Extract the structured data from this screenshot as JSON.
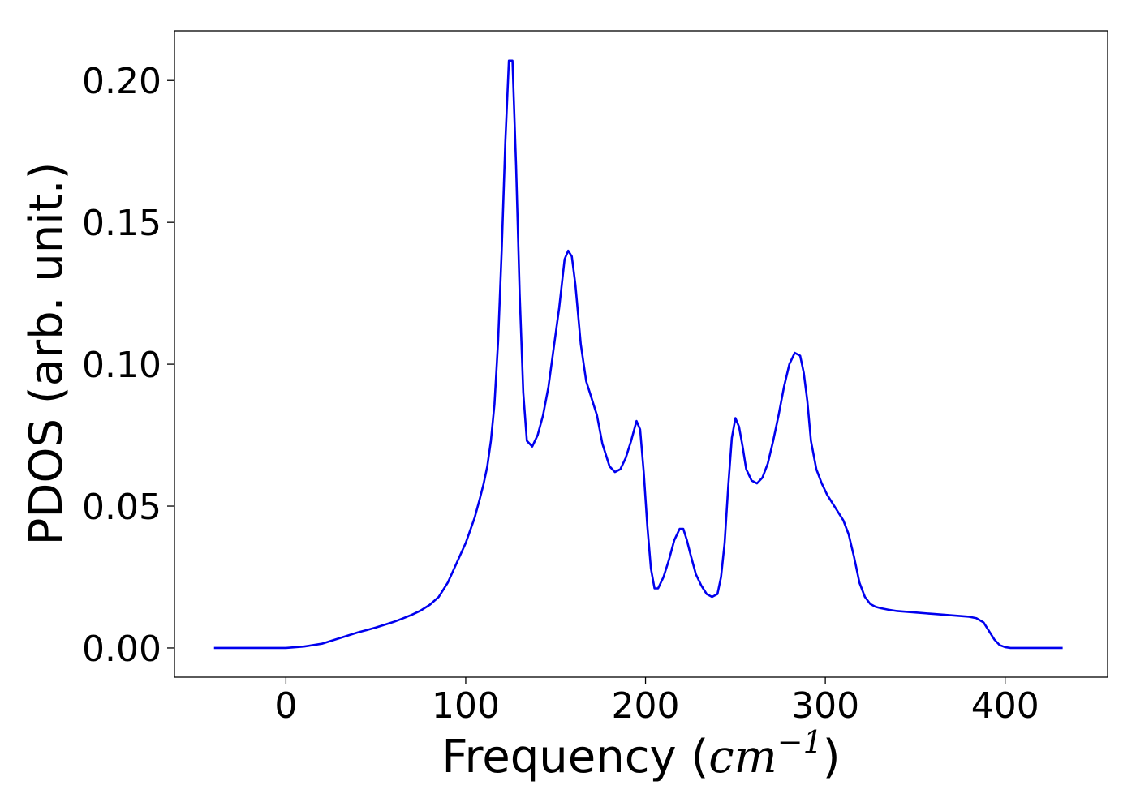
{
  "chart_data": {
    "type": "line",
    "title": "",
    "xlabel": "Frequency (",
    "xlabel_unit_base": "cm",
    "xlabel_unit_exp": "−1",
    "xlabel_close": ")",
    "ylabel": "PDOS (arb. unit.)",
    "xlim": [
      -62,
      457
    ],
    "ylim": [
      -0.0103,
      0.2175
    ],
    "xticks": [
      0,
      100,
      200,
      300,
      400
    ],
    "xtick_labels": [
      "0",
      "100",
      "200",
      "300",
      "400"
    ],
    "yticks": [
      0.0,
      0.05,
      0.1,
      0.15,
      0.2
    ],
    "ytick_labels": [
      "0.00",
      "0.05",
      "0.10",
      "0.15",
      "0.20"
    ],
    "grid": false,
    "line_color": "#0000ee",
    "series": [
      {
        "x": [
          -40,
          0,
          10,
          20,
          25,
          30,
          35,
          40,
          45,
          50,
          55,
          60,
          65,
          70,
          75,
          80,
          85,
          90,
          95,
          100,
          105,
          108,
          110,
          112,
          114,
          116,
          118,
          120,
          122,
          124,
          126,
          128,
          130,
          132,
          134,
          137,
          140,
          143,
          146,
          149,
          152,
          155,
          157,
          159,
          161,
          164,
          167,
          170,
          173,
          176,
          180,
          183,
          186,
          189,
          192,
          195,
          197,
          199,
          201,
          203,
          205,
          207,
          210,
          213,
          216,
          219,
          221,
          223,
          225,
          228,
          231,
          234,
          237,
          240,
          242,
          244,
          246,
          248,
          250,
          252,
          254,
          256,
          259,
          262,
          265,
          268,
          271,
          274,
          277,
          280,
          283,
          286,
          288,
          290,
          292,
          295,
          298,
          301,
          304,
          307,
          310,
          313,
          316,
          319,
          322,
          325,
          328,
          331,
          335,
          340,
          350,
          360,
          370,
          380,
          384,
          388,
          391,
          394,
          397,
          400,
          403,
          410,
          432
        ],
        "y": [
          0.0,
          0.0,
          0.0005,
          0.0015,
          0.0025,
          0.0035,
          0.0045,
          0.0055,
          0.0063,
          0.0072,
          0.0082,
          0.0092,
          0.0104,
          0.0117,
          0.0132,
          0.0152,
          0.018,
          0.023,
          0.03,
          0.037,
          0.046,
          0.053,
          0.058,
          0.064,
          0.073,
          0.086,
          0.108,
          0.14,
          0.178,
          0.207,
          0.207,
          0.17,
          0.125,
          0.09,
          0.073,
          0.071,
          0.075,
          0.082,
          0.092,
          0.106,
          0.12,
          0.137,
          0.14,
          0.138,
          0.128,
          0.107,
          0.094,
          0.088,
          0.082,
          0.072,
          0.064,
          0.062,
          0.063,
          0.067,
          0.073,
          0.08,
          0.077,
          0.062,
          0.043,
          0.028,
          0.021,
          0.021,
          0.025,
          0.031,
          0.038,
          0.042,
          0.042,
          0.038,
          0.033,
          0.026,
          0.022,
          0.019,
          0.018,
          0.019,
          0.025,
          0.037,
          0.057,
          0.074,
          0.081,
          0.078,
          0.071,
          0.063,
          0.059,
          0.058,
          0.06,
          0.065,
          0.073,
          0.082,
          0.092,
          0.1,
          0.104,
          0.103,
          0.097,
          0.087,
          0.073,
          0.063,
          0.058,
          0.054,
          0.051,
          0.048,
          0.045,
          0.04,
          0.032,
          0.023,
          0.018,
          0.0155,
          0.0145,
          0.014,
          0.0135,
          0.013,
          0.0125,
          0.012,
          0.0115,
          0.011,
          0.0105,
          0.009,
          0.006,
          0.003,
          0.001,
          0.0003,
          0.0,
          0.0,
          0.0
        ]
      }
    ]
  }
}
